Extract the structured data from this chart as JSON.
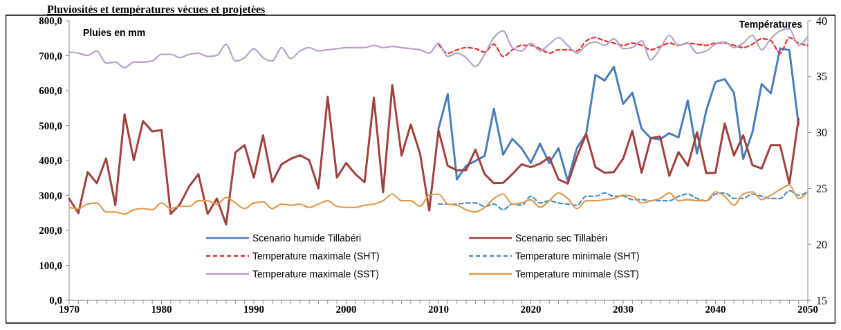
{
  "chart_data": {
    "type": "line",
    "title": "Pluviosités et températures vécues et projetées",
    "ylabel": "Pluies en mm",
    "y2label": "Températures",
    "xlim": [
      1970,
      2050
    ],
    "xticks": [
      1970,
      {
        "value": 1971,
        "label": null
      },
      {
        "value": 1972,
        "label": null
      },
      {
        "value": 1973,
        "label": null
      },
      {
        "value": 1974,
        "label": null
      },
      {
        "value": 1975,
        "label": null
      },
      {
        "value": 1976,
        "label": null
      },
      {
        "value": 1977,
        "label": null
      },
      {
        "value": 1978,
        "label": null
      },
      {
        "value": 1979,
        "label": null
      },
      1980,
      {
        "value": 1981,
        "label": null
      },
      {
        "value": 1982,
        "label": null
      },
      {
        "value": 1983,
        "label": null
      },
      {
        "value": 1984,
        "label": null
      },
      {
        "value": 1985,
        "label": null
      },
      {
        "value": 1986,
        "label": null
      },
      {
        "value": 1987,
        "label": null
      },
      {
        "value": 1988,
        "label": null
      },
      {
        "value": 1989,
        "label": null
      },
      1990,
      {
        "value": 1991,
        "label": null
      },
      {
        "value": 1992,
        "label": null
      },
      {
        "value": 1993,
        "label": null
      },
      {
        "value": 1994,
        "label": null
      },
      {
        "value": 1995,
        "label": null
      },
      {
        "value": 1996,
        "label": null
      },
      {
        "value": 1997,
        "label": null
      },
      {
        "value": 1998,
        "label": null
      },
      {
        "value": 1999,
        "label": null
      },
      2000,
      {
        "value": 2001,
        "label": null
      },
      {
        "value": 2002,
        "label": null
      },
      {
        "value": 2003,
        "label": null
      },
      {
        "value": 2004,
        "label": null
      },
      {
        "value": 2005,
        "label": null
      },
      {
        "value": 2006,
        "label": null
      },
      {
        "value": 2007,
        "label": null
      },
      {
        "value": 2008,
        "label": null
      },
      {
        "value": 2009,
        "label": null
      },
      2010,
      {
        "value": 2011,
        "label": null
      },
      {
        "value": 2012,
        "label": null
      },
      {
        "value": 2013,
        "label": null
      },
      {
        "value": 2014,
        "label": null
      },
      {
        "value": 2015,
        "label": null
      },
      {
        "value": 2016,
        "label": null
      },
      {
        "value": 2017,
        "label": null
      },
      {
        "value": 2018,
        "label": null
      },
      {
        "value": 2019,
        "label": null
      },
      2020,
      {
        "value": 2021,
        "label": null
      },
      {
        "value": 2022,
        "label": null
      },
      {
        "value": 2023,
        "label": null
      },
      {
        "value": 2024,
        "label": null
      },
      {
        "value": 2025,
        "label": null
      },
      {
        "value": 2026,
        "label": null
      },
      {
        "value": 2027,
        "label": null
      },
      {
        "value": 2028,
        "label": null
      },
      {
        "value": 2029,
        "label": null
      },
      2030,
      {
        "value": 2031,
        "label": null
      },
      {
        "value": 2032,
        "label": null
      },
      {
        "value": 2033,
        "label": null
      },
      {
        "value": 2034,
        "label": null
      },
      {
        "value": 2035,
        "label": null
      },
      {
        "value": 2036,
        "label": null
      },
      {
        "value": 2037,
        "label": null
      },
      {
        "value": 2038,
        "label": null
      },
      {
        "value": 2039,
        "label": null
      },
      2040,
      {
        "value": 2041,
        "label": null
      },
      {
        "value": 2042,
        "label": null
      },
      {
        "value": 2043,
        "label": null
      },
      {
        "value": 2044,
        "label": null
      },
      {
        "value": 2045,
        "label": null
      },
      {
        "value": 2046,
        "label": null
      },
      {
        "value": 2047,
        "label": null
      },
      {
        "value": 2048,
        "label": null
      },
      {
        "value": 2049,
        "label": null
      },
      2050
    ],
    "ylim": [
      0,
      800
    ],
    "yticks": [
      {
        "value": 0,
        "label": "0,0"
      },
      {
        "value": 100,
        "label": "100,0"
      },
      {
        "value": 200,
        "label": "200,0"
      },
      {
        "value": 300,
        "label": "300,0"
      },
      {
        "value": 400,
        "label": "400,0"
      },
      {
        "value": 500,
        "label": "500,0"
      },
      {
        "value": 600,
        "label": "600,0"
      },
      {
        "value": 700,
        "label": "700,0"
      },
      {
        "value": 800,
        "label": "800,0"
      }
    ],
    "y2lim": [
      15,
      40
    ],
    "y2ticks": [
      15,
      20,
      25,
      30,
      35,
      40
    ],
    "grid": false,
    "legend": "bottom",
    "marker": "none",
    "series": [
      {
        "name": "Scenario humide Tillabéri",
        "color": "#4a7ebb",
        "line_style": "solid",
        "x": [
          2010,
          2011,
          2012,
          2013,
          2014,
          2015,
          2016,
          2017,
          2018,
          2019,
          2020,
          2021,
          2022,
          2023,
          2024,
          2025,
          2026,
          2027,
          2028,
          2029,
          2030,
          2031,
          2032,
          2033,
          2034,
          2035,
          2036,
          2037,
          2038,
          2039,
          2040,
          2041,
          2042,
          2043,
          2044,
          2045,
          2046,
          2047,
          2048,
          2049
        ],
        "values": [
          491,
          590,
          346,
          385,
          399,
          413,
          548,
          417,
          462,
          435,
          393,
          448,
          393,
          435,
          342,
          436,
          476,
          645,
          629,
          668,
          562,
          594,
          491,
          464,
          461,
          478,
          466,
          572,
          420,
          543,
          625,
          633,
          594,
          405,
          480,
          619,
          592,
          721,
          716,
          503
        ]
      },
      {
        "name": "Scenario sec Tillabéri",
        "color": "#a0413d",
        "line_style": "solid",
        "x": [
          1970,
          1971,
          1972,
          1973,
          1974,
          1975,
          1976,
          1977,
          1978,
          1979,
          1980,
          1981,
          1982,
          1983,
          1984,
          1985,
          1986,
          1987,
          1988,
          1989,
          1990,
          1991,
          1992,
          1993,
          1994,
          1995,
          1996,
          1997,
          1998,
          1999,
          2000,
          2001,
          2002,
          2003,
          2004,
          2005,
          2006,
          2007,
          2008,
          2009,
          2010,
          2011,
          2012,
          2013,
          2014,
          2015,
          2016,
          2017,
          2018,
          2019,
          2020,
          2021,
          2022,
          2023,
          2024,
          2025,
          2026,
          2027,
          2028,
          2029,
          2030,
          2031,
          2032,
          2033,
          2034,
          2035,
          2036,
          2037,
          2038,
          2039,
          2040,
          2041,
          2042,
          2043,
          2044,
          2045,
          2046,
          2047,
          2048,
          2049
        ],
        "values": [
          291,
          249,
          367,
          335,
          406,
          272,
          532,
          401,
          513,
          483,
          487,
          247,
          275,
          326,
          361,
          247,
          291,
          217,
          423,
          444,
          351,
          472,
          338,
          389,
          405,
          415,
          401,
          320,
          582,
          351,
          393,
          361,
          338,
          580,
          309,
          616,
          414,
          503,
          420,
          257,
          487,
          385,
          372,
          373,
          431,
          361,
          335,
          336,
          361,
          389,
          381,
          391,
          409,
          346,
          334,
          411,
          476,
          381,
          365,
          367,
          405,
          485,
          365,
          464,
          469,
          356,
          424,
          385,
          481,
          364,
          365,
          506,
          414,
          472,
          387,
          377,
          444,
          444,
          334,
          519
        ]
      },
      {
        "name": "Temperature maximale (SHT)",
        "color": "#e8302a",
        "line_style": "dashed",
        "axis": "y2",
        "x": [
          2010,
          2011,
          2012,
          2013,
          2014,
          2015,
          2016,
          2017,
          2018,
          2019,
          2020,
          2021,
          2022,
          2023,
          2024,
          2025,
          2026,
          2027,
          2028,
          2029,
          2030,
          2031,
          2032,
          2033,
          2034,
          2035,
          2036,
          2037,
          2038,
          2039,
          2040,
          2041,
          2042,
          2043,
          2044,
          2045,
          2046,
          2047,
          2048,
          2049,
          2050
        ],
        "values": [
          37.9,
          37.1,
          37.4,
          37.6,
          37.5,
          37.2,
          37.9,
          36.8,
          37.4,
          37.8,
          37.8,
          37.5,
          37.1,
          37.4,
          37.4,
          37.3,
          38.2,
          38.5,
          38.2,
          38.0,
          37.8,
          38.0,
          37.8,
          37.4,
          37.7,
          38.0,
          37.8,
          38.0,
          37.9,
          37.8,
          38.0,
          38.0,
          37.8,
          37.6,
          37.9,
          38.4,
          38.2,
          37.1,
          38.5,
          38.0,
          37.8
        ]
      },
      {
        "name": "Temperature minimale (SHT)",
        "color": "#4a8fc8",
        "line_style": "dashed",
        "axis": "y2",
        "x": [
          2010,
          2011,
          2012,
          2013,
          2014,
          2015,
          2016,
          2017,
          2018,
          2019,
          2020,
          2021,
          2022,
          2023,
          2024,
          2025,
          2026,
          2027,
          2028,
          2029,
          2030,
          2031,
          2032,
          2033,
          2034,
          2035,
          2036,
          2037,
          2038,
          2039,
          2040,
          2041,
          2042,
          2043,
          2044,
          2045,
          2046,
          2047,
          2048,
          2049,
          2050
        ],
        "values": [
          23.6,
          23.6,
          23.6,
          23.7,
          23.7,
          23.4,
          23.6,
          23.1,
          23.6,
          23.5,
          24.3,
          23.7,
          23.9,
          23.7,
          23.6,
          23.5,
          24.3,
          24.3,
          24.6,
          24.3,
          24.3,
          24.0,
          24.0,
          23.9,
          23.9,
          23.9,
          24.3,
          24.5,
          24.1,
          23.9,
          24.5,
          24.6,
          24.1,
          24.1,
          24.5,
          24.3,
          24.1,
          24.1,
          24.8,
          24.4,
          24.7
        ]
      },
      {
        "name": "Temperature maximale (SST)",
        "color": "#b9a0c9",
        "line_style": "solid",
        "axis": "y2",
        "x": [
          1970,
          1971,
          1972,
          1973,
          1974,
          1975,
          1976,
          1977,
          1978,
          1979,
          1980,
          1981,
          1982,
          1983,
          1984,
          1985,
          1986,
          1987,
          1988,
          1989,
          1990,
          1991,
          1992,
          1993,
          1994,
          1995,
          1996,
          1997,
          1998,
          1999,
          2000,
          2001,
          2002,
          2003,
          2004,
          2005,
          2006,
          2007,
          2008,
          2009,
          2010,
          2011,
          2012,
          2013,
          2014,
          2015,
          2016,
          2017,
          2018,
          2019,
          2020,
          2021,
          2022,
          2023,
          2024,
          2025,
          2026,
          2027,
          2028,
          2029,
          2030,
          2031,
          2032,
          2033,
          2034,
          2035,
          2036,
          2037,
          2038,
          2039,
          2040,
          2041,
          2042,
          2043,
          2044,
          2045,
          2046,
          2047,
          2048,
          2049,
          2050
        ],
        "values": [
          37.2,
          37.1,
          36.9,
          37.3,
          36.2,
          36.3,
          35.8,
          36.3,
          36.3,
          36.4,
          37.0,
          37.0,
          36.7,
          37.0,
          37.1,
          36.8,
          36.9,
          37.9,
          36.4,
          36.7,
          37.5,
          36.7,
          36.4,
          37.6,
          36.6,
          37.3,
          37.6,
          37.3,
          37.4,
          37.5,
          37.6,
          37.6,
          37.6,
          37.8,
          37.6,
          37.7,
          37.6,
          37.5,
          37.4,
          37.1,
          38.0,
          36.8,
          37.1,
          36.7,
          35.9,
          37.0,
          38.5,
          39.1,
          37.6,
          37.3,
          38.0,
          37.3,
          37.9,
          38.5,
          37.8,
          37.1,
          37.8,
          38.1,
          37.8,
          38.4,
          37.5,
          37.6,
          38.2,
          36.5,
          37.5,
          38.7,
          37.8,
          38.0,
          37.1,
          37.3,
          37.9,
          38.1,
          37.6,
          38.0,
          38.7,
          37.4,
          38.4,
          39.1,
          39.3,
          37.8,
          38.6
        ]
      },
      {
        "name": "Temperature minimale (SST)",
        "color": "#e09a4c",
        "line_style": "solid",
        "axis": "y2",
        "x": [
          1970,
          1971,
          1972,
          1973,
          1974,
          1975,
          1976,
          1977,
          1978,
          1979,
          1980,
          1981,
          1982,
          1983,
          1984,
          1985,
          1986,
          1987,
          1988,
          1989,
          1990,
          1991,
          1992,
          1993,
          1994,
          1995,
          1996,
          1997,
          1998,
          1999,
          2000,
          2001,
          2002,
          2003,
          2004,
          2005,
          2006,
          2007,
          2008,
          2009,
          2010,
          2011,
          2012,
          2013,
          2014,
          2015,
          2016,
          2017,
          2018,
          2019,
          2020,
          2021,
          2022,
          2023,
          2024,
          2025,
          2026,
          2027,
          2028,
          2029,
          2030,
          2031,
          2032,
          2033,
          2034,
          2035,
          2036,
          2037,
          2038,
          2039,
          2040,
          2041,
          2042,
          2043,
          2044,
          2045,
          2046,
          2047,
          2048,
          2049,
          2050
        ],
        "values": [
          23.3,
          23.2,
          23.6,
          23.7,
          22.9,
          22.9,
          22.7,
          23.1,
          23.2,
          23.1,
          23.7,
          23.2,
          23.4,
          23.4,
          23.9,
          23.9,
          23.6,
          24.2,
          23.7,
          23.2,
          23.7,
          23.8,
          23.2,
          23.6,
          23.5,
          23.6,
          23.3,
          23.6,
          23.9,
          23.4,
          23.3,
          23.3,
          23.5,
          23.6,
          23.9,
          24.5,
          23.9,
          23.9,
          23.4,
          24.4,
          24.5,
          23.6,
          23.5,
          23.1,
          22.9,
          23.3,
          24.1,
          24.5,
          23.6,
          23.7,
          24.0,
          23.3,
          23.9,
          24.6,
          24.1,
          23.2,
          23.9,
          23.9,
          24.0,
          24.1,
          24.4,
          24.3,
          23.7,
          23.9,
          24.1,
          24.6,
          23.9,
          24.0,
          23.9,
          23.9,
          24.7,
          24.3,
          23.5,
          24.5,
          24.7,
          24.0,
          24.4,
          24.9,
          25.3,
          24.1,
          24.7
        ]
      }
    ]
  }
}
